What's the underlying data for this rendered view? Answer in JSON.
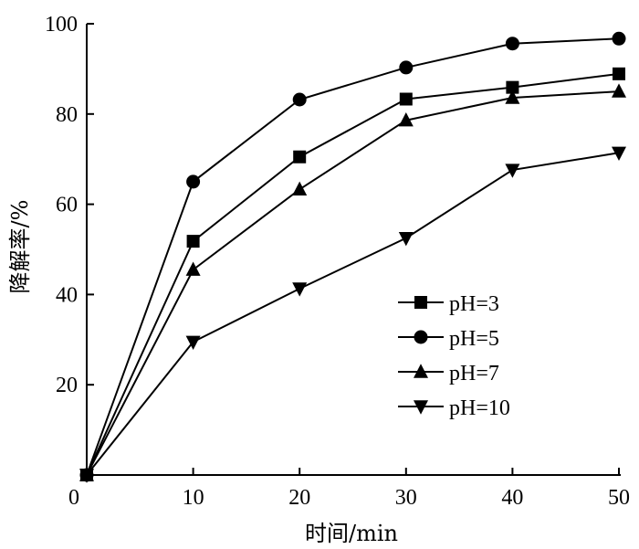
{
  "chart_data": {
    "type": "line",
    "title": "",
    "xlabel": "时间/min",
    "ylabel": "降解率/%",
    "x": [
      0,
      10,
      20,
      30,
      40,
      50
    ],
    "xlim": [
      0,
      50
    ],
    "ylim": [
      0,
      100
    ],
    "xticks": [
      0,
      10,
      20,
      30,
      40,
      50
    ],
    "yticks": [
      20,
      40,
      60,
      80,
      100
    ],
    "grid": false,
    "legend_position": "lower-right",
    "series": [
      {
        "name": "pH=3",
        "marker": "square",
        "values": [
          0,
          51.8,
          70.5,
          83.3,
          85.9,
          88.9
        ]
      },
      {
        "name": "pH=5",
        "marker": "circle",
        "values": [
          0,
          65.0,
          83.2,
          90.3,
          95.6,
          96.7
        ]
      },
      {
        "name": "pH=7",
        "marker": "triangle-up",
        "values": [
          0,
          45.5,
          63.3,
          78.6,
          83.6,
          85.0
        ]
      },
      {
        "name": "pH=10",
        "marker": "triangle-down",
        "values": [
          0,
          29.5,
          41.3,
          52.5,
          67.6,
          71.4
        ]
      }
    ]
  }
}
